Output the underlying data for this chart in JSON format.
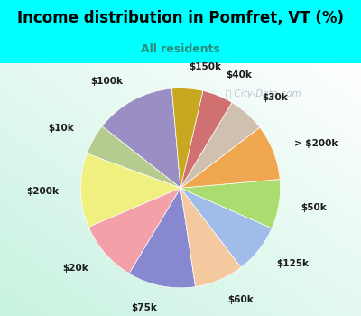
{
  "title": "Income distribution in Pomfret, VT (%)",
  "subtitle": "All residents",
  "title_color": "#000000",
  "subtitle_color": "#2d8b7a",
  "bg_color": "#00ffff",
  "watermark": "City-Data.com",
  "labels": [
    "$100k",
    "$10k",
    "$200k",
    "$20k",
    "$75k",
    "$60k",
    "$125k",
    "$50k",
    "> $200k",
    "$30k",
    "$40k",
    "$150k"
  ],
  "values": [
    13,
    5,
    12,
    10,
    11,
    8,
    8,
    8,
    9,
    6,
    5,
    5
  ],
  "colors": [
    "#9b8ec4",
    "#b5cc8e",
    "#f0f080",
    "#f4a0a8",
    "#8888d0",
    "#f5c9a0",
    "#a0bce8",
    "#aadc70",
    "#f0a850",
    "#d0c0b0",
    "#d07070",
    "#c8a820"
  ],
  "label_fontsize": 7.5,
  "title_fontsize": 12,
  "subtitle_fontsize": 9,
  "startangle": 95
}
